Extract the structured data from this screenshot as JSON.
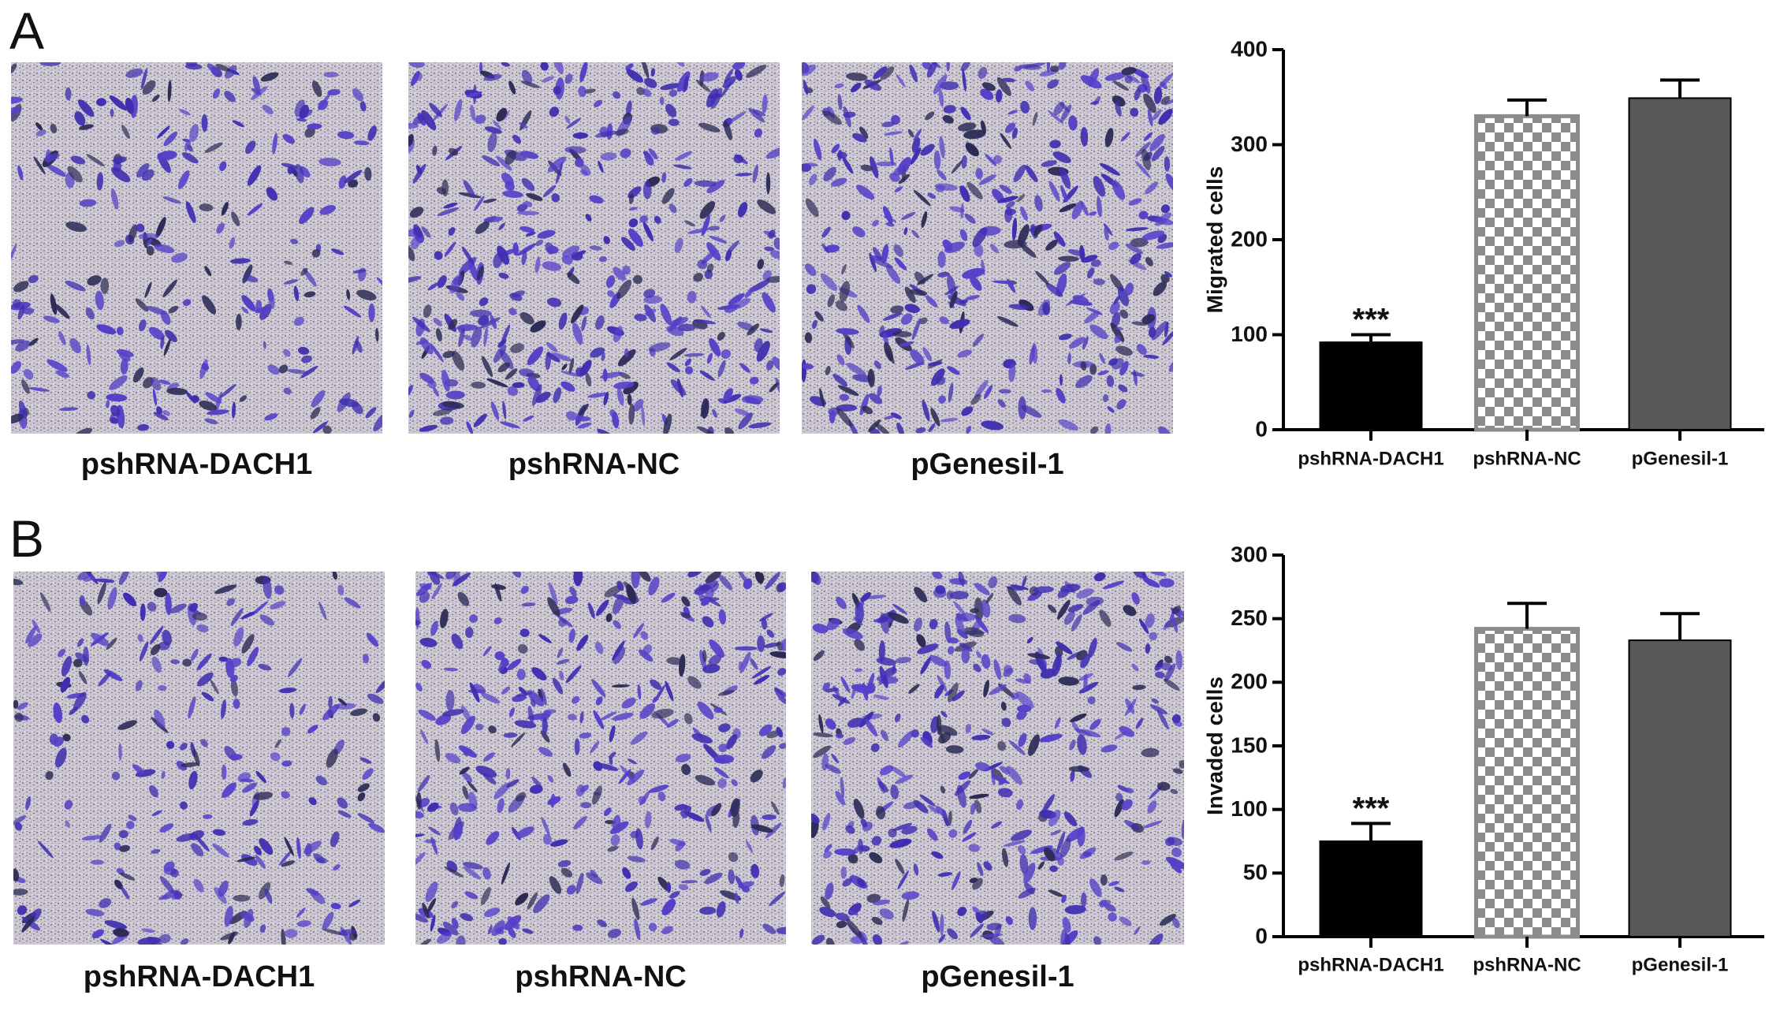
{
  "panel_labels": [
    "A",
    "B"
  ],
  "captions": [
    [
      "pshRNA-DACH1",
      "pshRNA-NC",
      "pGenesil-1"
    ],
    [
      "pshRNA-DACH1",
      "pshRNA-NC",
      "pGenesil-1"
    ]
  ],
  "chart_data": [
    {
      "type": "bar",
      "y_label": "Migrated cells",
      "categories": [
        "pshRNA-DACH1",
        "pshRNA-NC",
        "pGenesil-1"
      ],
      "values": [
        92,
        330,
        349
      ],
      "errors": [
        8,
        17,
        19
      ],
      "colors": [
        "#000000",
        "#8c8c8c",
        "#585858"
      ],
      "fills": [
        "solid",
        "checkerboard",
        "solid"
      ],
      "ylim": [
        0,
        400
      ],
      "yticks": [
        0,
        100,
        200,
        300,
        400
      ],
      "annotation": {
        "text": "***",
        "category": "pshRNA-DACH1"
      }
    },
    {
      "type": "bar",
      "y_label": "Invaded cells",
      "categories": [
        "pshRNA-DACH1",
        "pshRNA-NC",
        "pGenesil-1"
      ],
      "values": [
        75,
        242,
        233
      ],
      "errors": [
        14,
        20,
        21
      ],
      "colors": [
        "#000000",
        "#8c8c8c",
        "#585858"
      ],
      "fills": [
        "solid",
        "checkerboard",
        "solid"
      ],
      "ylim": [
        0,
        300
      ],
      "yticks": [
        0,
        50,
        100,
        150,
        200,
        250,
        300
      ],
      "annotation": {
        "text": "***",
        "category": "pshRNA-DACH1"
      }
    }
  ]
}
